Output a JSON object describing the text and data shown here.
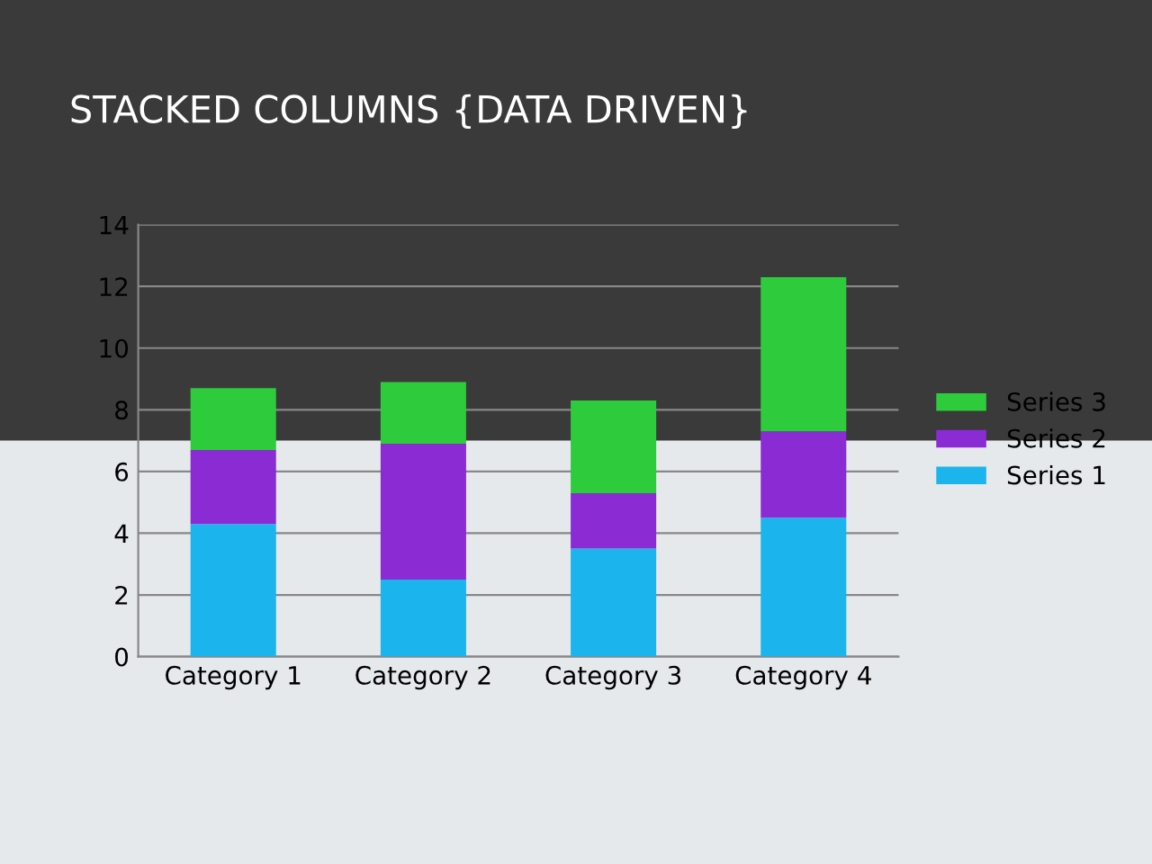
{
  "chart_data": {
    "type": "bar",
    "title": "STACKED COLUMNS {DATA DRIVEN}",
    "stacked": true,
    "categories": [
      "Category 1",
      "Category 2",
      "Category 3",
      "Category 4"
    ],
    "series": [
      {
        "name": "Series 1",
        "color": "#1cb4ec",
        "values": [
          4.3,
          2.5,
          3.5,
          4.5
        ]
      },
      {
        "name": "Series 2",
        "color": "#8a2bd4",
        "values": [
          2.4,
          4.4,
          1.8,
          2.8
        ]
      },
      {
        "name": "Series 3",
        "color": "#2ecb3c",
        "values": [
          2,
          2,
          3,
          5
        ]
      }
    ],
    "ylim": [
      0,
      14
    ],
    "yticks": [
      0,
      2,
      4,
      6,
      8,
      10,
      12,
      14
    ],
    "grid": "y",
    "legend": "right"
  }
}
